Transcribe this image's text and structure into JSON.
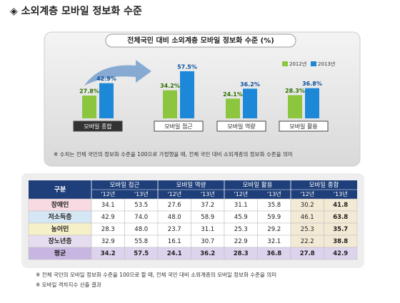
{
  "title": "◈ 소외계층 모바일 정보화 수준",
  "chart_data": {
    "type": "bar",
    "title": "전체국민 대비 소외계층 모바일 정보화 수준 (%)",
    "categories": [
      "모바일 종합",
      "모바일 접근",
      "모바일 역량",
      "모바일 활용"
    ],
    "series": [
      {
        "name": "2012년",
        "color": "#8cc63f",
        "values": [
          27.8,
          34.2,
          24.1,
          28.3
        ],
        "value_labels": [
          "27.8%",
          "34.2%",
          "24.1%",
          "28.3%"
        ]
      },
      {
        "name": "2013년",
        "color": "#1e88d8",
        "values": [
          42.9,
          57.5,
          36.2,
          36.8
        ],
        "value_labels": [
          "42.9%",
          "57.5%",
          "36.2%",
          "36.8%"
        ]
      }
    ],
    "note": "※ 수치는 전체 국민의 정보화 수준을 100으로 가정했을 때, 전체 국민 대비 소외계층의 정보화 수준을 의미"
  },
  "table": {
    "corner": "구분",
    "groups": [
      "모바일 접근",
      "모바일 역량",
      "모바일 활용",
      "모바일 종합"
    ],
    "years": [
      "'12년",
      "'13년"
    ],
    "rows": [
      [
        "장애인",
        "34.1",
        "53.5",
        "27.6",
        "37.2",
        "31.1",
        "35.8",
        "30.2",
        "41.8"
      ],
      [
        "저소득층",
        "42.9",
        "74.0",
        "48.0",
        "58.9",
        "45.9",
        "59.9",
        "46.1",
        "63.8"
      ],
      [
        "농어민",
        "28.3",
        "48.0",
        "23.7",
        "31.1",
        "25.3",
        "29.2",
        "25.3",
        "35.7"
      ],
      [
        "장노년층",
        "32.9",
        "55.8",
        "16.1",
        "30.7",
        "22.9",
        "32.1",
        "22.2",
        "38.8"
      ],
      [
        "평균",
        "34.2",
        "57.5",
        "24.1",
        "36.2",
        "28.3",
        "36.8",
        "27.8",
        "42.9"
      ]
    ]
  },
  "notes": [
    "※ 전체 국민의 모바일 정보화 수준을 100으로 할 때, 전체 국민 대비 소외계층의 모바일 정보화 수준을 의미",
    "※ 모바일 격차지수 산출 결과"
  ]
}
